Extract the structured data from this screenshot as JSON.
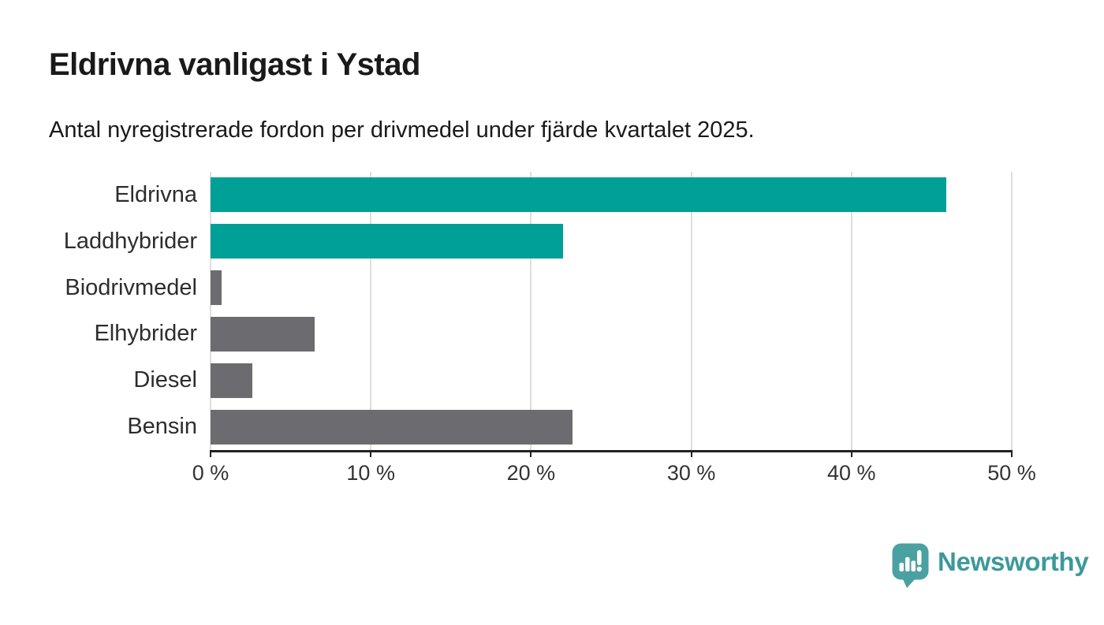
{
  "header": {
    "title": "Eldrivna vanligast i Ystad",
    "subtitle": "Antal nyregistrerade fordon per drivmedel under fjärde kvartalet 2025."
  },
  "chart_data": {
    "type": "bar",
    "orientation": "horizontal",
    "title": "Eldrivna vanligast i Ystad",
    "subtitle": "Antal nyregistrerade fordon per drivmedel under fjärde kvartalet 2025.",
    "categories": [
      "Eldrivna",
      "Laddhybrider",
      "Biodrivmedel",
      "Elhybrider",
      "Diesel",
      "Bensin"
    ],
    "values": [
      45.9,
      22.0,
      0.7,
      6.5,
      2.6,
      22.6
    ],
    "unit": "%",
    "colors": [
      "#00a096",
      "#00a096",
      "#6c6c70",
      "#6c6c70",
      "#6c6c70",
      "#6c6c70"
    ],
    "xlim": [
      0,
      50
    ],
    "x_tick_values": [
      0,
      10,
      20,
      30,
      40,
      50
    ],
    "x_ticks": [
      "0 %",
      "10 %",
      "20 %",
      "30 %",
      "40 %",
      "50 %"
    ],
    "grid": "vertical-gridlines-on",
    "legend": "none",
    "accent_color": "#00a096",
    "neutral_color": "#6c6c70",
    "gridline_color": "#dedede",
    "axis_color": "#222222"
  },
  "branding": {
    "logo_text": "Newsworthy",
    "logo_color": "#3d999b",
    "icon": "newsworthy-chart-bubble-icon",
    "icon_color": "#4ba1a2"
  }
}
